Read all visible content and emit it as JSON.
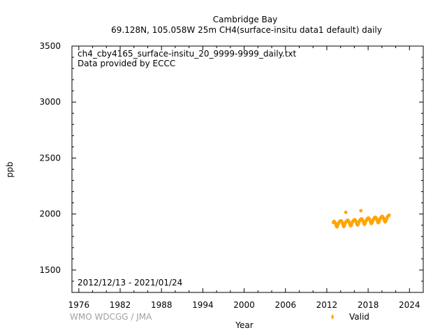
{
  "chart_data": {
    "type": "scatter",
    "title": "Cambridge Bay",
    "subtitle": "69.128N, 105.058W 25m    CH4(surface-insitu data1 default) daily",
    "xlabel": "Year",
    "ylabel": "ppb",
    "xlim": [
      1975.0,
      2026.0
    ],
    "ylim": [
      1300,
      3500
    ],
    "xticks": [
      1976,
      1982,
      1988,
      1994,
      2000,
      2006,
      2012,
      2018,
      2024
    ],
    "yticks": [
      1500,
      2000,
      2500,
      3000,
      3500
    ],
    "annotation_file": "ch4_cby4165_surface-insitu_20_9999-9999_daily.txt",
    "annotation_provider": "Data provided by ECCC",
    "date_range": "2012/12/13 - 2021/01/24",
    "credit": "WMO WDCGG / JMA",
    "legend": {
      "position": "bottom-right",
      "label": "Valid"
    },
    "series": [
      {
        "name": "Valid",
        "color": "#ffa500",
        "x": [
          2012.95,
          2013.05,
          2013.15,
          2013.25,
          2013.35,
          2013.45,
          2013.55,
          2013.65,
          2013.75,
          2013.85,
          2013.95,
          2014.05,
          2014.15,
          2014.25,
          2014.35,
          2014.45,
          2014.55,
          2014.65,
          2014.75,
          2014.85,
          2014.95,
          2015.05,
          2015.15,
          2015.25,
          2015.35,
          2015.45,
          2015.55,
          2015.65,
          2015.75,
          2015.85,
          2015.95,
          2016.05,
          2016.15,
          2016.25,
          2016.35,
          2016.45,
          2016.55,
          2016.65,
          2016.75,
          2016.85,
          2016.95,
          2017.05,
          2017.15,
          2017.25,
          2017.35,
          2017.45,
          2017.55,
          2017.65,
          2017.75,
          2017.85,
          2017.95,
          2018.05,
          2018.15,
          2018.25,
          2018.35,
          2018.45,
          2018.55,
          2018.65,
          2018.75,
          2018.85,
          2018.95,
          2019.05,
          2019.15,
          2019.25,
          2019.35,
          2019.45,
          2019.55,
          2019.65,
          2019.75,
          2019.85,
          2019.95,
          2020.05,
          2020.15,
          2020.25,
          2020.35,
          2020.45,
          2020.55,
          2020.65,
          2020.75,
          2020.85,
          2020.95,
          2021.05,
          2014.75,
          2016.95
        ],
        "y": [
          1925,
          1935,
          1928,
          1915,
          1898,
          1885,
          1890,
          1910,
          1925,
          1932,
          1938,
          1940,
          1935,
          1922,
          1905,
          1888,
          1895,
          1915,
          1928,
          1935,
          1942,
          1945,
          1938,
          1925,
          1908,
          1895,
          1900,
          1918,
          1932,
          1940,
          1948,
          1950,
          1944,
          1932,
          1915,
          1902,
          1908,
          1925,
          1940,
          1948,
          1955,
          1958,
          1950,
          1938,
          1920,
          1908,
          1915,
          1932,
          1946,
          1955,
          1962,
          1965,
          1958,
          1945,
          1928,
          1915,
          1920,
          1938,
          1952,
          1960,
          1968,
          1972,
          1965,
          1952,
          1935,
          1922,
          1928,
          1945,
          1960,
          1968,
          1976,
          1980,
          1973,
          1960,
          1942,
          1930,
          1935,
          1952,
          1968,
          1978,
          1985,
          1990,
          2015,
          2030
        ]
      }
    ]
  }
}
